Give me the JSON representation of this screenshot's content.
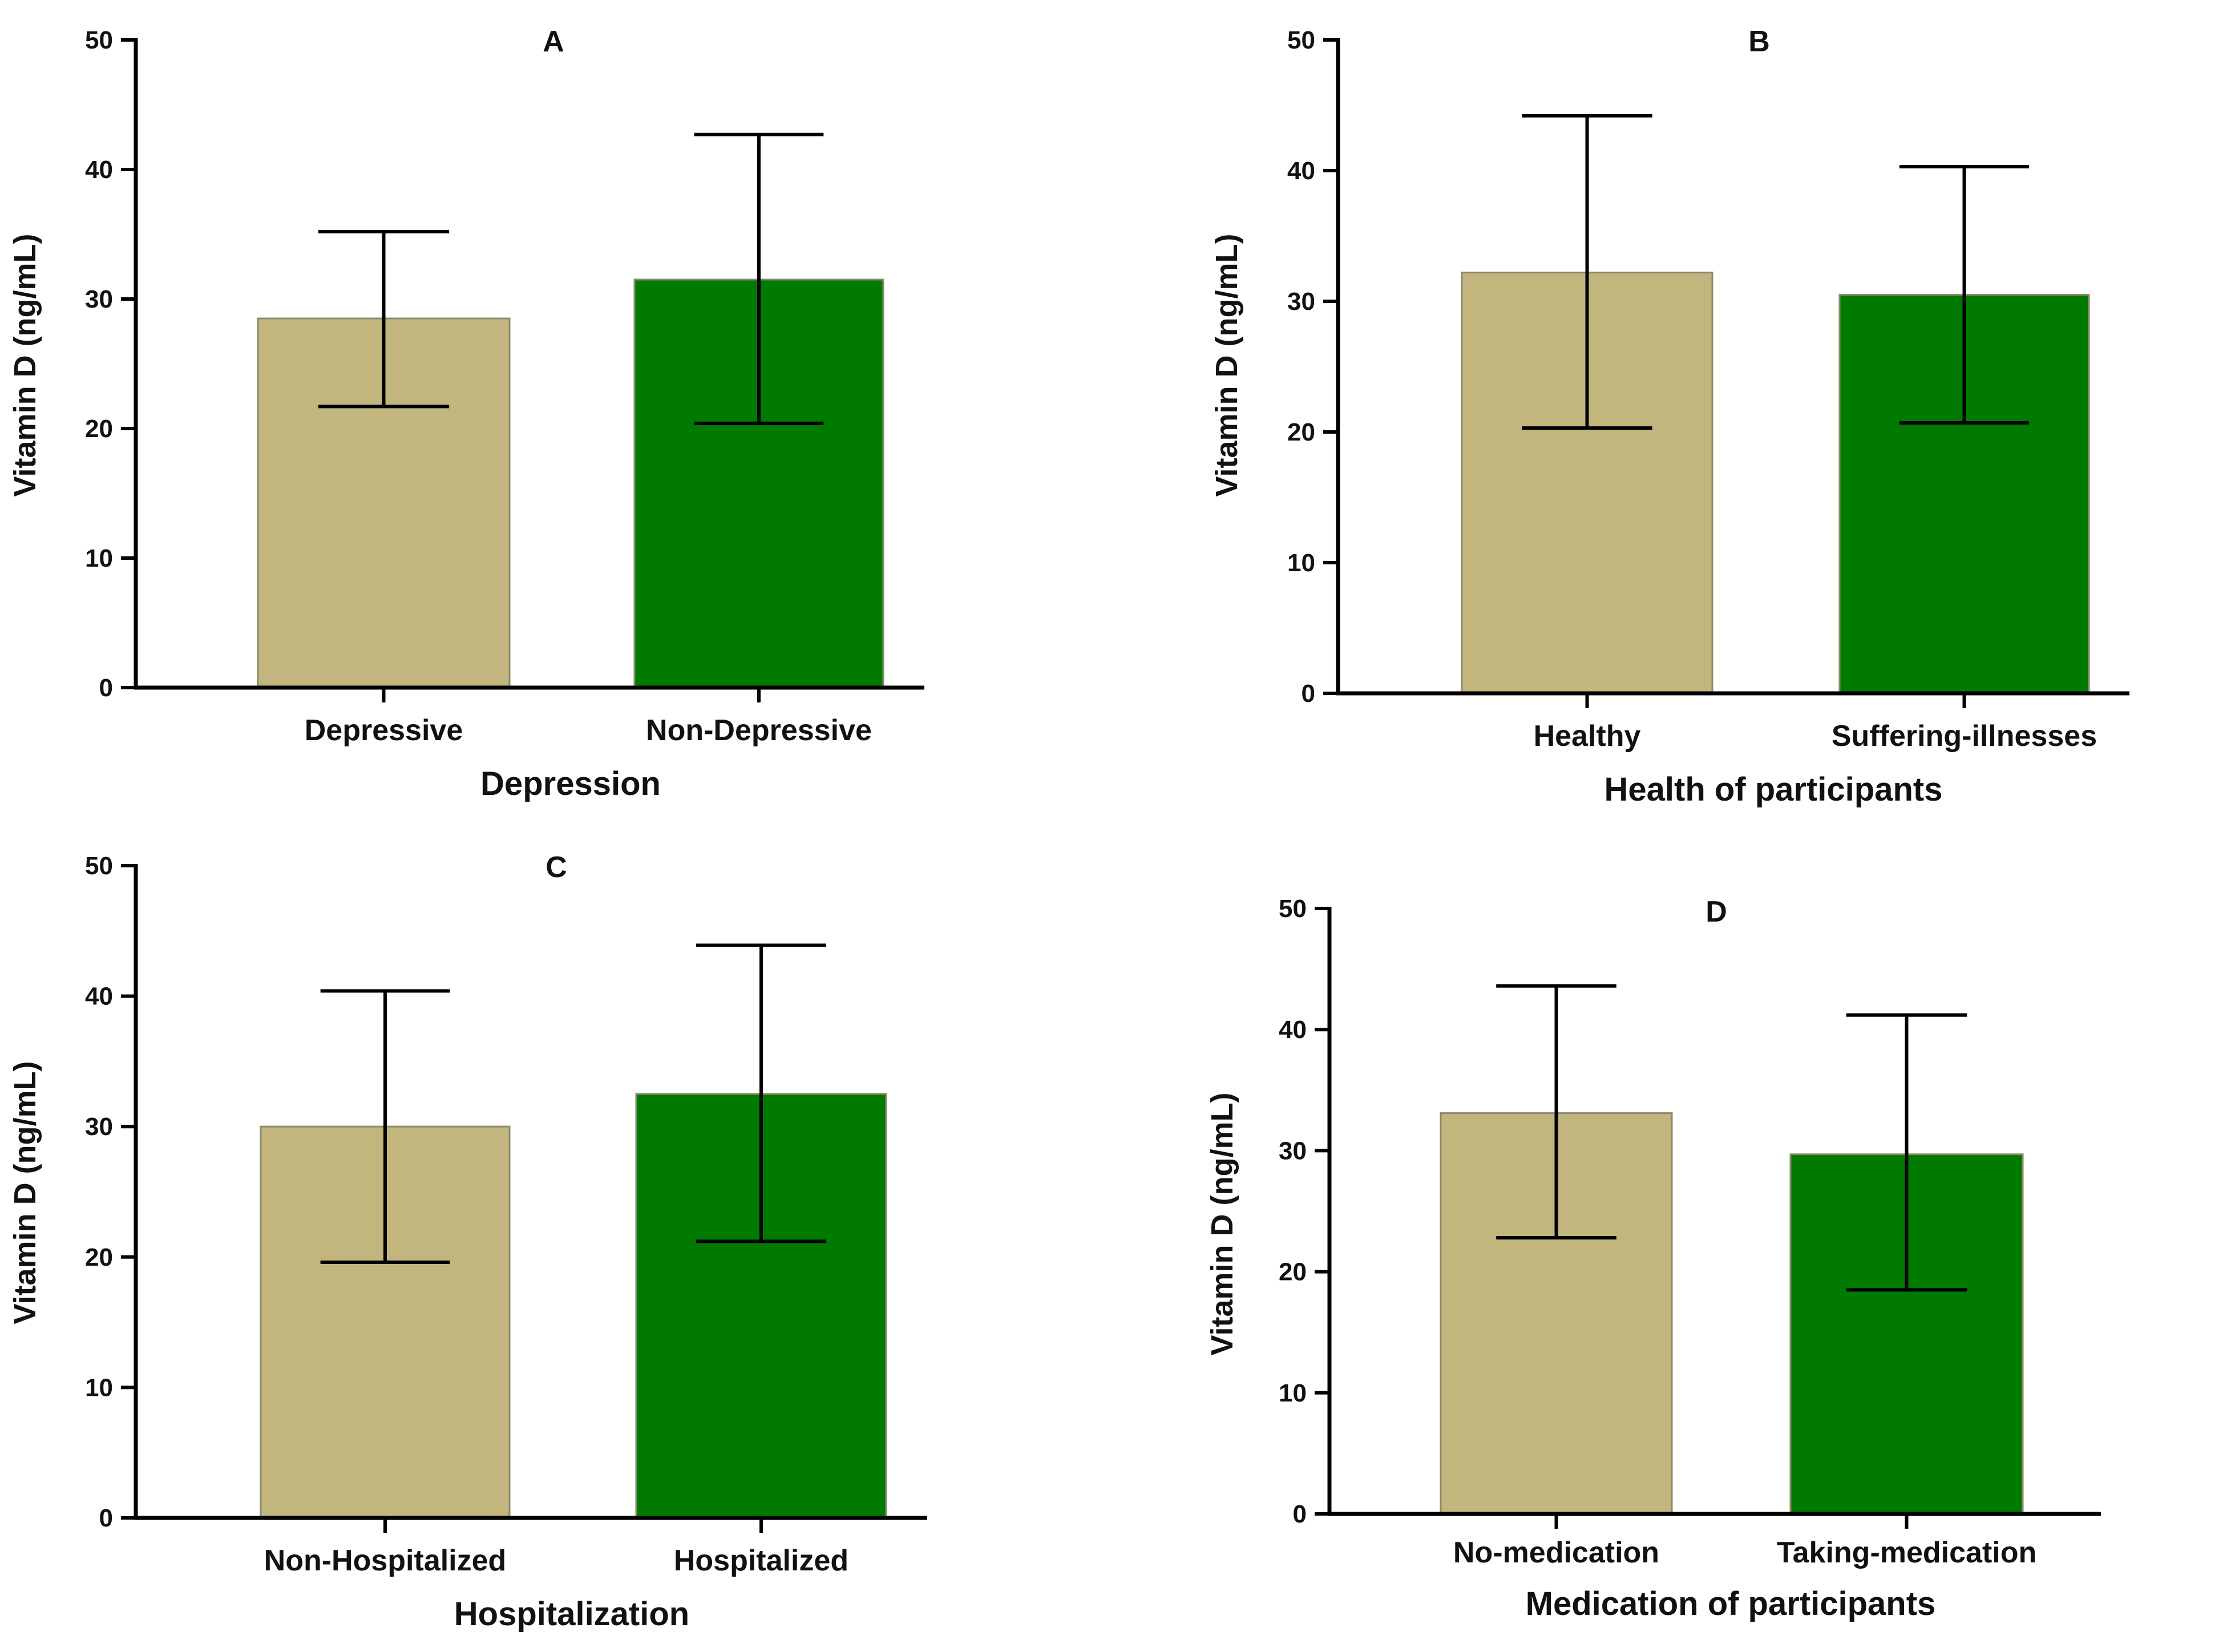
{
  "colors": {
    "bar_1": "#c2b57d",
    "bar_2": "#007a00",
    "axis": "#000000"
  },
  "chart_data": [
    {
      "type": "bar",
      "title": "A",
      "xlabel": "Depression",
      "ylabel": "Vitamin D (ng/mL)",
      "ylim": [
        0,
        50
      ],
      "yticks": [
        "0",
        "10",
        "20",
        "30",
        "40",
        "50"
      ],
      "grid": false,
      "categories": [
        "Depressive",
        "Non-Depressive"
      ],
      "values": [
        28.5,
        31.5
      ],
      "error_low": [
        21.7,
        20.4
      ],
      "error_high": [
        35.2,
        42.7
      ]
    },
    {
      "type": "bar",
      "title": "B",
      "xlabel": "Health of participants",
      "ylabel": "Vitamin D (ng/mL)",
      "ylim": [
        0,
        50
      ],
      "yticks": [
        "0",
        "10",
        "20",
        "30",
        "40",
        "50"
      ],
      "grid": false,
      "categories": [
        "Healthy",
        "Suffering-illnesses"
      ],
      "values": [
        32.2,
        30.5
      ],
      "error_low": [
        20.3,
        20.7
      ],
      "error_high": [
        44.2,
        40.3
      ]
    },
    {
      "type": "bar",
      "title": "C",
      "xlabel": "Hospitalization",
      "ylabel": "Vitamin D (ng/mL)",
      "ylim": [
        0,
        50
      ],
      "yticks": [
        "0",
        "10",
        "20",
        "30",
        "40",
        "50"
      ],
      "grid": false,
      "categories": [
        "Non-Hospitalized",
        "Hospitalized"
      ],
      "values": [
        30.0,
        32.5
      ],
      "error_low": [
        19.6,
        21.2
      ],
      "error_high": [
        40.4,
        43.9
      ]
    },
    {
      "type": "bar",
      "title": "D",
      "xlabel": "Medication of participants",
      "ylabel": "Vitamin D (ng/mL)",
      "ylim": [
        0,
        50
      ],
      "yticks": [
        "0",
        "10",
        "20",
        "30",
        "40",
        "50"
      ],
      "grid": false,
      "categories": [
        "No-medication",
        "Taking-medication"
      ],
      "values": [
        33.1,
        29.7
      ],
      "error_low": [
        22.8,
        18.5
      ],
      "error_high": [
        43.6,
        41.2
      ]
    }
  ]
}
